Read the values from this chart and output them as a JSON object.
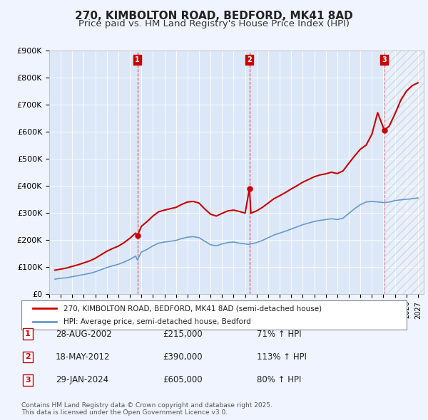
{
  "title": "270, KIMBOLTON ROAD, BEDFORD, MK41 8AD",
  "subtitle": "Price paid vs. HM Land Registry's House Price Index (HPI)",
  "background_color": "#f0f4ff",
  "plot_bg_color": "#dce8f8",
  "title_fontsize": 11,
  "subtitle_fontsize": 9.5,
  "ylabel": "",
  "xlabel": "",
  "ylim": [
    0,
    900000
  ],
  "yticks": [
    0,
    100000,
    200000,
    300000,
    400000,
    500000,
    600000,
    700000,
    800000,
    900000
  ],
  "ytick_labels": [
    "£0",
    "£100K",
    "£200K",
    "£300K",
    "£400K",
    "£500K",
    "£600K",
    "£700K",
    "£800K",
    "£900K"
  ],
  "xlim_start": 1995.0,
  "xlim_end": 2027.5,
  "transactions": [
    {
      "label": "1",
      "date": "28-AUG-2002",
      "year": 2002.65,
      "price": 215000,
      "pct": "71%",
      "dir": "↑"
    },
    {
      "label": "2",
      "date": "18-MAY-2012",
      "year": 2012.38,
      "price": 390000,
      "pct": "113%",
      "dir": "↑"
    },
    {
      "label": "3",
      "date": "29-JAN-2024",
      "year": 2024.08,
      "price": 605000,
      "pct": "80%",
      "dir": "↑"
    }
  ],
  "red_line_color": "#cc0000",
  "blue_line_color": "#6699cc",
  "vline_color": "#cc0000",
  "legend_label_red": "270, KIMBOLTON ROAD, BEDFORD, MK41 8AD (semi-detached house)",
  "legend_label_blue": "HPI: Average price, semi-detached house, Bedford",
  "footer_text": "Contains HM Land Registry data © Crown copyright and database right 2025.\nThis data is licensed under the Open Government Licence v3.0.",
  "hpi_data": {
    "years": [
      1995.5,
      1996.0,
      1996.5,
      1997.0,
      1997.5,
      1998.0,
      1998.5,
      1999.0,
      1999.5,
      2000.0,
      2000.5,
      2001.0,
      2001.5,
      2002.0,
      2002.5,
      2002.65,
      2003.0,
      2003.5,
      2004.0,
      2004.5,
      2005.0,
      2005.5,
      2006.0,
      2006.5,
      2007.0,
      2007.5,
      2008.0,
      2008.5,
      2009.0,
      2009.5,
      2010.0,
      2010.5,
      2011.0,
      2011.5,
      2012.0,
      2012.38,
      2012.5,
      2013.0,
      2013.5,
      2014.0,
      2014.5,
      2015.0,
      2015.5,
      2016.0,
      2016.5,
      2017.0,
      2017.5,
      2018.0,
      2018.5,
      2019.0,
      2019.5,
      2020.0,
      2020.5,
      2021.0,
      2021.5,
      2022.0,
      2022.5,
      2023.0,
      2023.5,
      2024.08,
      2024.5,
      2025.0,
      2025.5,
      2026.0,
      2026.5,
      2027.0
    ],
    "values": [
      55000,
      58000,
      60000,
      64000,
      68000,
      72000,
      76000,
      82000,
      90000,
      98000,
      104000,
      110000,
      118000,
      128000,
      140000,
      125842,
      155000,
      165000,
      178000,
      188000,
      192000,
      195000,
      198000,
      205000,
      210000,
      212000,
      208000,
      195000,
      182000,
      178000,
      185000,
      190000,
      192000,
      188000,
      185000,
      183099,
      185000,
      190000,
      198000,
      208000,
      218000,
      225000,
      232000,
      240000,
      248000,
      256000,
      262000,
      268000,
      272000,
      275000,
      278000,
      275000,
      280000,
      298000,
      315000,
      330000,
      340000,
      342000,
      340000,
      337736,
      340000,
      345000,
      348000,
      350000,
      352000,
      355000
    ]
  },
  "red_data": {
    "years": [
      1995.5,
      1996.0,
      1996.5,
      1997.0,
      1997.5,
      1998.0,
      1998.5,
      1999.0,
      1999.5,
      2000.0,
      2000.5,
      2001.0,
      2001.5,
      2002.0,
      2002.5,
      2002.65,
      2003.0,
      2003.5,
      2004.0,
      2004.5,
      2005.0,
      2005.5,
      2006.0,
      2006.5,
      2007.0,
      2007.5,
      2008.0,
      2008.5,
      2009.0,
      2009.5,
      2010.0,
      2010.5,
      2011.0,
      2011.5,
      2012.0,
      2012.38,
      2012.5,
      2013.0,
      2013.5,
      2014.0,
      2014.5,
      2015.0,
      2015.5,
      2016.0,
      2016.5,
      2017.0,
      2017.5,
      2018.0,
      2018.5,
      2019.0,
      2019.5,
      2020.0,
      2020.5,
      2021.0,
      2021.5,
      2022.0,
      2022.5,
      2023.0,
      2023.5,
      2024.08,
      2024.5,
      2025.0,
      2025.5,
      2026.0,
      2026.5,
      2027.0
    ],
    "values": [
      88000,
      92000,
      96000,
      102000,
      108000,
      115000,
      122000,
      132000,
      145000,
      158000,
      168000,
      177000,
      190000,
      206000,
      225000,
      215000,
      250000,
      268000,
      288000,
      304000,
      310000,
      315000,
      320000,
      331000,
      340000,
      342000,
      336000,
      314000,
      295000,
      288000,
      298000,
      307000,
      310000,
      305000,
      299000,
      390000,
      299000,
      307000,
      320000,
      336000,
      352000,
      363000,
      375000,
      388000,
      400000,
      413000,
      423000,
      433000,
      440000,
      444000,
      450000,
      445000,
      455000,
      483000,
      510000,
      535000,
      550000,
      590000,
      670000,
      605000,
      620000,
      665000,
      715000,
      750000,
      770000,
      780000
    ]
  }
}
